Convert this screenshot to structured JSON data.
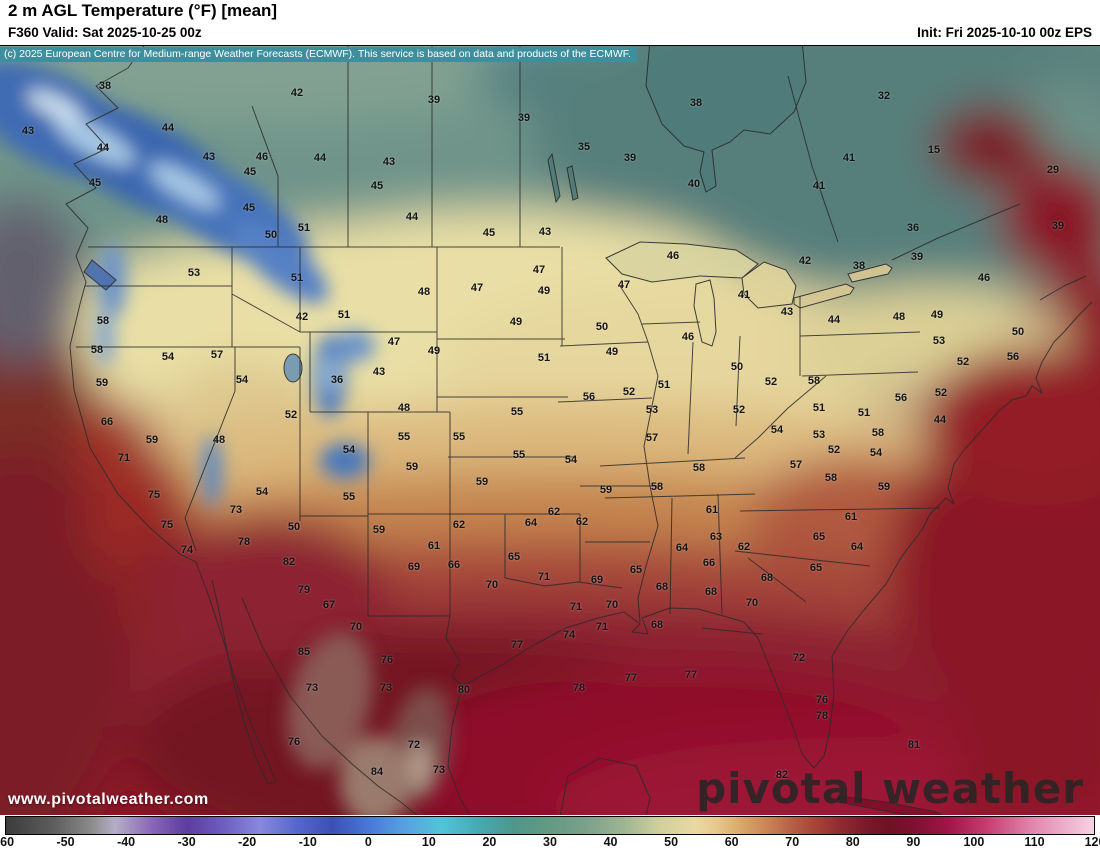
{
  "header": {
    "title": "2 m AGL Temperature (°F) [mean]",
    "valid": "F360 Valid: Sat 2025-10-25 00z",
    "init": "Init: Fri 2025-10-10 00z EPS"
  },
  "copyright": "(c) 2025 European Centre for Medium-range Weather Forecasts (ECMWF). This service is based on data and products of the ECMWF.",
  "watermark": {
    "url": "www.pivotalweather.com",
    "brand": "pivotal weather"
  },
  "colorbar": {
    "min": -60,
    "max": 120,
    "ticks": [
      "-60",
      "-50",
      "-40",
      "-30",
      "-20",
      "-10",
      "0",
      "10",
      "20",
      "30",
      "40",
      "50",
      "60",
      "70",
      "80",
      "90",
      "100",
      "110",
      "120"
    ],
    "stops": [
      {
        "v": -60,
        "c": "#3c3c3c"
      },
      {
        "v": -52,
        "c": "#5e5e5e"
      },
      {
        "v": -46,
        "c": "#8a8a8a"
      },
      {
        "v": -42,
        "c": "#b5aec6"
      },
      {
        "v": -36,
        "c": "#8a68b8"
      },
      {
        "v": -30,
        "c": "#5c3c9e"
      },
      {
        "v": -24,
        "c": "#6e5ec0"
      },
      {
        "v": -18,
        "c": "#8888dc"
      },
      {
        "v": -12,
        "c": "#5668cc"
      },
      {
        "v": -6,
        "c": "#3c50b4"
      },
      {
        "v": 0,
        "c": "#4878d8"
      },
      {
        "v": 6,
        "c": "#58a0e0"
      },
      {
        "v": 12,
        "c": "#52c4d8"
      },
      {
        "v": 18,
        "c": "#46aab4"
      },
      {
        "v": 24,
        "c": "#4e968c"
      },
      {
        "v": 30,
        "c": "#649a82"
      },
      {
        "v": 36,
        "c": "#7ba08a"
      },
      {
        "v": 42,
        "c": "#9db492"
      },
      {
        "v": 48,
        "c": "#cfcf9c"
      },
      {
        "v": 54,
        "c": "#ead9a2"
      },
      {
        "v": 58,
        "c": "#e6c488"
      },
      {
        "v": 62,
        "c": "#d8a468"
      },
      {
        "v": 66,
        "c": "#c98454"
      },
      {
        "v": 70,
        "c": "#b66046"
      },
      {
        "v": 74,
        "c": "#a54438"
      },
      {
        "v": 78,
        "c": "#8f2c32"
      },
      {
        "v": 82,
        "c": "#7a1a2a"
      },
      {
        "v": 86,
        "c": "#6e1224"
      },
      {
        "v": 90,
        "c": "#7c1030"
      },
      {
        "v": 96,
        "c": "#a01648"
      },
      {
        "v": 102,
        "c": "#c43c6e"
      },
      {
        "v": 110,
        "c": "#e288b0"
      },
      {
        "v": 120,
        "c": "#f6d2e4"
      }
    ]
  },
  "map": {
    "units": "°F",
    "temperature_labels": [
      [
        38,
        105,
        86
      ],
      [
        43,
        28,
        131
      ],
      [
        44,
        103,
        148
      ],
      [
        44,
        168,
        128
      ],
      [
        42,
        297,
        93
      ],
      [
        39,
        434,
        100
      ],
      [
        39,
        524,
        118
      ],
      [
        35,
        584,
        147
      ],
      [
        38,
        696,
        103
      ],
      [
        32,
        884,
        96
      ],
      [
        43,
        209,
        157
      ],
      [
        46,
        262,
        157
      ],
      [
        44,
        320,
        158
      ],
      [
        43,
        389,
        162
      ],
      [
        45,
        250,
        172
      ],
      [
        45,
        95,
        183
      ],
      [
        45,
        377,
        186
      ],
      [
        39,
        630,
        158
      ],
      [
        40,
        694,
        184
      ],
      [
        41,
        849,
        158
      ],
      [
        41,
        819,
        186
      ],
      [
        15,
        934,
        150
      ],
      [
        29,
        1053,
        170
      ],
      [
        48,
        162,
        220
      ],
      [
        45,
        249,
        208
      ],
      [
        50,
        271,
        235
      ],
      [
        51,
        304,
        228
      ],
      [
        44,
        412,
        217
      ],
      [
        45,
        489,
        233
      ],
      [
        43,
        545,
        232
      ],
      [
        46,
        673,
        256
      ],
      [
        42,
        805,
        261
      ],
      [
        38,
        859,
        266
      ],
      [
        39,
        917,
        257
      ],
      [
        36,
        913,
        228
      ],
      [
        39,
        1058,
        226
      ],
      [
        53,
        194,
        273
      ],
      [
        51,
        297,
        278
      ],
      [
        47,
        539,
        270
      ],
      [
        48,
        424,
        292
      ],
      [
        47,
        477,
        288
      ],
      [
        49,
        544,
        291
      ],
      [
        47,
        624,
        285
      ],
      [
        41,
        744,
        295
      ],
      [
        46,
        984,
        278
      ],
      [
        58,
        103,
        321
      ],
      [
        42,
        302,
        317
      ],
      [
        51,
        344,
        315
      ],
      [
        49,
        516,
        322
      ],
      [
        50,
        602,
        327
      ],
      [
        43,
        787,
        312
      ],
      [
        44,
        834,
        320
      ],
      [
        48,
        899,
        317
      ],
      [
        49,
        937,
        315
      ],
      [
        53,
        939,
        341
      ],
      [
        50,
        1018,
        332
      ],
      [
        58,
        97,
        350
      ],
      [
        54,
        168,
        357
      ],
      [
        57,
        217,
        355
      ],
      [
        47,
        394,
        342
      ],
      [
        49,
        434,
        351
      ],
      [
        51,
        544,
        358
      ],
      [
        49,
        612,
        352
      ],
      [
        46,
        688,
        337
      ],
      [
        50,
        737,
        367
      ],
      [
        52,
        771,
        382
      ],
      [
        58,
        814,
        381
      ],
      [
        52,
        963,
        362
      ],
      [
        56,
        1013,
        357
      ],
      [
        59,
        102,
        383
      ],
      [
        54,
        242,
        380
      ],
      [
        43,
        379,
        372
      ],
      [
        36,
        337,
        380
      ],
      [
        52,
        291,
        415
      ],
      [
        48,
        404,
        408
      ],
      [
        52,
        629,
        392
      ],
      [
        51,
        664,
        385
      ],
      [
        56,
        589,
        397
      ],
      [
        53,
        652,
        410
      ],
      [
        52,
        739,
        410
      ],
      [
        51,
        819,
        408
      ],
      [
        51,
        864,
        413
      ],
      [
        56,
        901,
        398
      ],
      [
        52,
        941,
        393
      ],
      [
        44,
        940,
        420
      ],
      [
        66,
        107,
        422
      ],
      [
        59,
        152,
        440
      ],
      [
        48,
        219,
        440
      ],
      [
        55,
        404,
        437
      ],
      [
        55,
        459,
        437
      ],
      [
        55,
        517,
        412
      ],
      [
        54,
        349,
        450
      ],
      [
        59,
        412,
        467
      ],
      [
        55,
        519,
        455
      ],
      [
        54,
        571,
        460
      ],
      [
        57,
        652,
        438
      ],
      [
        54,
        777,
        430
      ],
      [
        53,
        819,
        435
      ],
      [
        58,
        878,
        433
      ],
      [
        71,
        124,
        458
      ],
      [
        58,
        699,
        468
      ],
      [
        57,
        796,
        465
      ],
      [
        52,
        834,
        450
      ],
      [
        54,
        876,
        453
      ],
      [
        75,
        154,
        495
      ],
      [
        54,
        262,
        492
      ],
      [
        55,
        349,
        497
      ],
      [
        59,
        482,
        482
      ],
      [
        59,
        606,
        490
      ],
      [
        58,
        657,
        487
      ],
      [
        58,
        831,
        478
      ],
      [
        59,
        884,
        487
      ],
      [
        62,
        554,
        512
      ],
      [
        61,
        712,
        510
      ],
      [
        62,
        582,
        522
      ],
      [
        61,
        851,
        517
      ],
      [
        75,
        167,
        525
      ],
      [
        73,
        236,
        510
      ],
      [
        50,
        294,
        527
      ],
      [
        59,
        379,
        530
      ],
      [
        62,
        459,
        525
      ],
      [
        64,
        531,
        523
      ],
      [
        63,
        716,
        537
      ],
      [
        65,
        819,
        537
      ],
      [
        74,
        187,
        550
      ],
      [
        78,
        244,
        542
      ],
      [
        61,
        434,
        546
      ],
      [
        64,
        682,
        548
      ],
      [
        62,
        744,
        547
      ],
      [
        66,
        709,
        563
      ],
      [
        64,
        857,
        547
      ],
      [
        82,
        289,
        562
      ],
      [
        69,
        414,
        567
      ],
      [
        66,
        454,
        565
      ],
      [
        65,
        514,
        557
      ],
      [
        71,
        544,
        577
      ],
      [
        69,
        597,
        580
      ],
      [
        65,
        636,
        570
      ],
      [
        68,
        662,
        587
      ],
      [
        68,
        767,
        578
      ],
      [
        65,
        816,
        568
      ],
      [
        79,
        304,
        590
      ],
      [
        67,
        329,
        605
      ],
      [
        70,
        492,
        585
      ],
      [
        71,
        576,
        607
      ],
      [
        70,
        612,
        605
      ],
      [
        68,
        711,
        592
      ],
      [
        70,
        752,
        603
      ],
      [
        70,
        356,
        627
      ],
      [
        74,
        569,
        635
      ],
      [
        71,
        602,
        627
      ],
      [
        68,
        657,
        625
      ],
      [
        85,
        304,
        652
      ],
      [
        76,
        387,
        660
      ],
      [
        77,
        517,
        645
      ],
      [
        72,
        799,
        658
      ],
      [
        78,
        579,
        688
      ],
      [
        77,
        631,
        678
      ],
      [
        77,
        691,
        675
      ],
      [
        73,
        312,
        688
      ],
      [
        73,
        386,
        688
      ],
      [
        80,
        464,
        690
      ],
      [
        76,
        822,
        700
      ],
      [
        78,
        822,
        716
      ],
      [
        76,
        294,
        742
      ],
      [
        72,
        414,
        745
      ],
      [
        73,
        439,
        770
      ],
      [
        84,
        377,
        772
      ],
      [
        81,
        914,
        745
      ],
      [
        82,
        782,
        775
      ]
    ]
  }
}
